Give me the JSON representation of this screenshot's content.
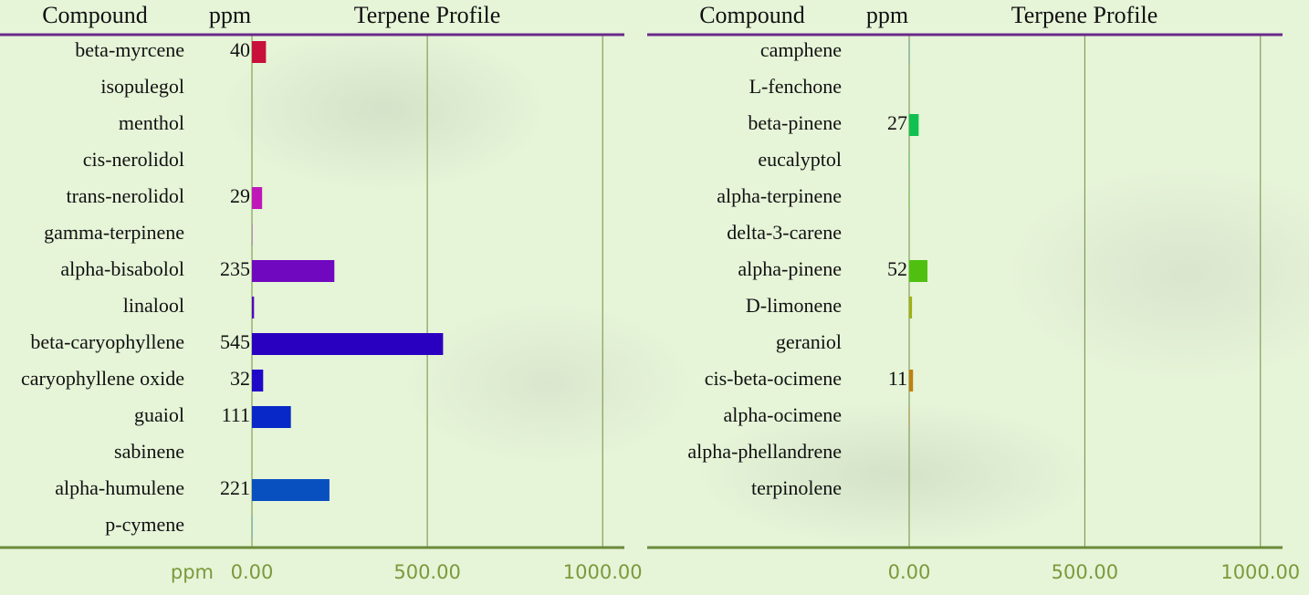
{
  "chart_data": [
    {
      "type": "bar",
      "orientation": "horizontal",
      "headers": [
        "Compound",
        "ppm",
        "Terpene Profile"
      ],
      "xlabel": "ppm",
      "categories": [
        "beta-myrcene",
        "isopulegol",
        "menthol",
        "cis-nerolidol",
        "trans-nerolidol",
        "gamma-terpinene",
        "alpha-bisabolol",
        "linalool",
        "beta-caryophyllene",
        "caryophyllene oxide",
        "guaiol",
        "sabinene",
        "alpha-humulene",
        "p-cymene"
      ],
      "values": [
        40,
        0,
        0,
        0,
        29,
        1,
        235,
        6,
        545,
        32,
        111,
        0,
        221,
        1
      ],
      "value_labels": [
        "40",
        null,
        null,
        null,
        "29",
        null,
        "235",
        null,
        "545",
        "32",
        "111",
        null,
        "221",
        null
      ],
      "colors": [
        "#c8103a",
        "#c810a0",
        "#c010b0",
        "#b010b8",
        "#c018b8",
        "#a010c0",
        "#7008c0",
        "#5008c0",
        "#2a00c0",
        "#2008c8",
        "#0828c8",
        "#0840c0",
        "#0850c0",
        "#0880c8"
      ],
      "xlim": [
        0,
        1062
      ],
      "xticks": [
        {
          "value": 0,
          "label": "0.00"
        },
        {
          "value": 500,
          "label": "500.00"
        },
        {
          "value": 1000,
          "label": "1000.00"
        }
      ],
      "grid": true
    },
    {
      "type": "bar",
      "orientation": "horizontal",
      "headers": [
        "Compound",
        "ppm",
        "Terpene Profile"
      ],
      "categories": [
        "camphene",
        "L-fenchone",
        "beta-pinene",
        "eucalyptol",
        "alpha-terpinene",
        "delta-3-carene",
        "alpha-pinene",
        "D-limonene",
        "geraniol",
        "cis-beta-ocimene",
        "alpha-ocimene",
        "alpha-phellandrene",
        "terpinolene"
      ],
      "values": [
        1,
        0,
        27,
        1,
        1,
        0,
        52,
        8,
        0,
        11,
        1,
        0,
        0
      ],
      "value_labels": [
        null,
        null,
        "27",
        null,
        null,
        null,
        "52",
        null,
        null,
        "11",
        null,
        null,
        null
      ],
      "colors": [
        "#1090c8",
        "#10a0b0",
        "#10c050",
        "#10c040",
        "#30c020",
        "#40c010",
        "#50c010",
        "#a0b010",
        "#b0a010",
        "#c08010",
        "#c06010",
        "#c05010",
        "#c04010"
      ],
      "xlim": [
        0,
        1063
      ],
      "xticks": [
        {
          "value": 0,
          "label": "0.00"
        },
        {
          "value": 500,
          "label": "500.00"
        },
        {
          "value": 1000,
          "label": "1000.00"
        }
      ],
      "grid": true
    }
  ]
}
